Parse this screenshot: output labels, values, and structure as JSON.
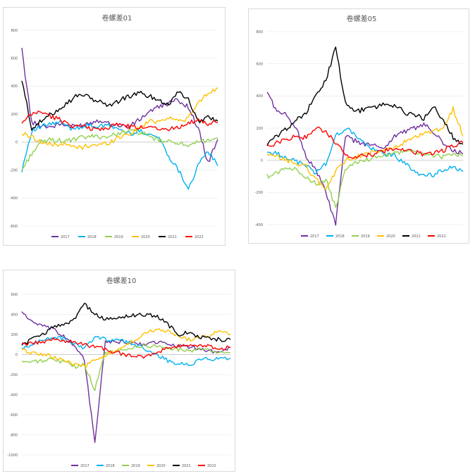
{
  "charts": [
    {
      "title": "卷螺差01",
      "yticks": [
        800,
        600,
        400,
        200,
        0,
        -200,
        -400,
        -600
      ],
      "ylim": [
        -600,
        800
      ]
    },
    {
      "title": "卷螺差05",
      "yticks": [
        800,
        600,
        400,
        200,
        0,
        -200,
        -400
      ],
      "ylim": [
        -400,
        800
      ]
    },
    {
      "title": "卷螺差10",
      "yticks": [
        600,
        400,
        200,
        0,
        -200,
        -400,
        -600,
        -800,
        -1000
      ],
      "ylim": [
        -1000,
        600
      ]
    }
  ],
  "legend": [
    "2017",
    "2018",
    "2019",
    "2020",
    "2021",
    "2022"
  ],
  "colors": [
    "#7030a0",
    "#00b0f0",
    "#92d050",
    "#ffc000",
    "#000000",
    "#ff0000"
  ],
  "chart_data": [
    {
      "type": "line",
      "title": "卷螺差01",
      "ylim": [
        -600,
        800
      ],
      "x": [
        0,
        5,
        10,
        15,
        20,
        25,
        30,
        35,
        40,
        45,
        50,
        55,
        60,
        65,
        70,
        75,
        80,
        85,
        90,
        95,
        100
      ],
      "series": [
        {
          "name": "2017",
          "values": [
            660,
            140,
            120,
            110,
            130,
            110,
            120,
            140,
            160,
            130,
            120,
            110,
            160,
            220,
            250,
            280,
            300,
            250,
            100,
            -150,
            20
          ]
        },
        {
          "name": "2018",
          "values": [
            -200,
            80,
            110,
            130,
            140,
            100,
            110,
            120,
            110,
            120,
            90,
            60,
            80,
            60,
            30,
            -100,
            -200,
            -330,
            -170,
            -60,
            -170
          ]
        },
        {
          "name": "2019",
          "values": [
            -200,
            -80,
            0,
            20,
            10,
            10,
            30,
            40,
            40,
            40,
            70,
            80,
            70,
            40,
            10,
            0,
            0,
            -40,
            0,
            20,
            30
          ]
        },
        {
          "name": "2020",
          "values": [
            60,
            40,
            0,
            -20,
            -10,
            -30,
            -40,
            -20,
            -20,
            0,
            40,
            60,
            100,
            150,
            150,
            180,
            150,
            170,
            280,
            350,
            390
          ]
        },
        {
          "name": "2021",
          "values": [
            440,
            100,
            150,
            200,
            250,
            300,
            350,
            310,
            290,
            260,
            300,
            330,
            350,
            330,
            300,
            270,
            370,
            300,
            150,
            180,
            150
          ]
        },
        {
          "name": "2022",
          "values": [
            130,
            200,
            220,
            180,
            160,
            120,
            110,
            100,
            90,
            110,
            130,
            110,
            100,
            120,
            100,
            90,
            110,
            140,
            150,
            130,
            140
          ]
        }
      ]
    },
    {
      "type": "line",
      "title": "卷螺差05",
      "ylim": [
        -400,
        800
      ],
      "x": [
        0,
        5,
        10,
        15,
        20,
        25,
        30,
        35,
        40,
        45,
        50,
        55,
        60,
        65,
        70,
        75,
        80,
        85,
        90,
        95,
        100
      ],
      "series": [
        {
          "name": "2017",
          "values": [
            430,
            300,
            280,
            200,
            20,
            -60,
            -200,
            -400,
            150,
            120,
            100,
            90,
            80,
            150,
            180,
            200,
            220,
            180,
            100,
            60,
            40
          ]
        },
        {
          "name": "2018",
          "values": [
            50,
            40,
            20,
            -10,
            -30,
            -80,
            -20,
            150,
            200,
            160,
            100,
            60,
            40,
            30,
            -20,
            -60,
            -100,
            -90,
            -60,
            -40,
            -70
          ]
        },
        {
          "name": "2019",
          "values": [
            -100,
            -80,
            -40,
            -60,
            -100,
            -150,
            -120,
            -300,
            -50,
            -20,
            0,
            20,
            30,
            40,
            60,
            50,
            40,
            30,
            20,
            40,
            30
          ]
        },
        {
          "name": "2020",
          "values": [
            30,
            20,
            0,
            -20,
            -40,
            -120,
            -180,
            -70,
            0,
            20,
            40,
            50,
            60,
            80,
            110,
            140,
            160,
            180,
            200,
            320,
            150
          ]
        },
        {
          "name": "2021",
          "values": [
            100,
            150,
            200,
            250,
            300,
            400,
            500,
            700,
            350,
            300,
            320,
            330,
            350,
            340,
            300,
            280,
            260,
            330,
            250,
            140,
            100
          ]
        },
        {
          "name": "2022",
          "values": [
            90,
            110,
            130,
            150,
            140,
            200,
            180,
            100,
            40,
            20,
            30,
            40,
            60,
            70,
            60,
            50,
            40,
            50,
            60,
            90,
            110
          ]
        }
      ]
    },
    {
      "type": "line",
      "title": "卷螺差10",
      "ylim": [
        -1000,
        600
      ],
      "x": [
        0,
        5,
        10,
        15,
        20,
        25,
        30,
        35,
        40,
        45,
        50,
        55,
        60,
        65,
        70,
        75,
        80,
        85,
        90,
        95,
        100
      ],
      "series": [
        {
          "name": "2017",
          "values": [
            430,
            320,
            280,
            250,
            180,
            100,
            -50,
            -880,
            120,
            130,
            120,
            110,
            100,
            130,
            100,
            80,
            80,
            60,
            40,
            20,
            70
          ]
        },
        {
          "name": "2018",
          "values": [
            50,
            100,
            150,
            170,
            160,
            110,
            60,
            180,
            150,
            140,
            130,
            90,
            40,
            0,
            -60,
            -90,
            -100,
            -60,
            -40,
            -50,
            -40
          ]
        },
        {
          "name": "2019",
          "values": [
            -60,
            -80,
            -60,
            -40,
            -80,
            -120,
            -100,
            -350,
            20,
            30,
            60,
            80,
            90,
            80,
            60,
            50,
            40,
            50,
            40,
            30,
            20
          ]
        },
        {
          "name": "2020",
          "values": [
            40,
            20,
            0,
            -20,
            -60,
            -100,
            -120,
            -60,
            -20,
            40,
            100,
            150,
            220,
            250,
            230,
            180,
            150,
            170,
            180,
            250,
            200
          ]
        },
        {
          "name": "2021",
          "values": [
            100,
            150,
            200,
            280,
            300,
            350,
            500,
            400,
            350,
            360,
            380,
            390,
            400,
            380,
            300,
            200,
            220,
            180,
            160,
            150,
            150
          ]
        },
        {
          "name": "2022",
          "values": [
            100,
            110,
            130,
            150,
            140,
            120,
            100,
            80,
            50,
            20,
            0,
            -10,
            -20,
            30,
            60,
            80,
            100,
            90,
            80,
            60,
            70
          ]
        }
      ]
    }
  ]
}
